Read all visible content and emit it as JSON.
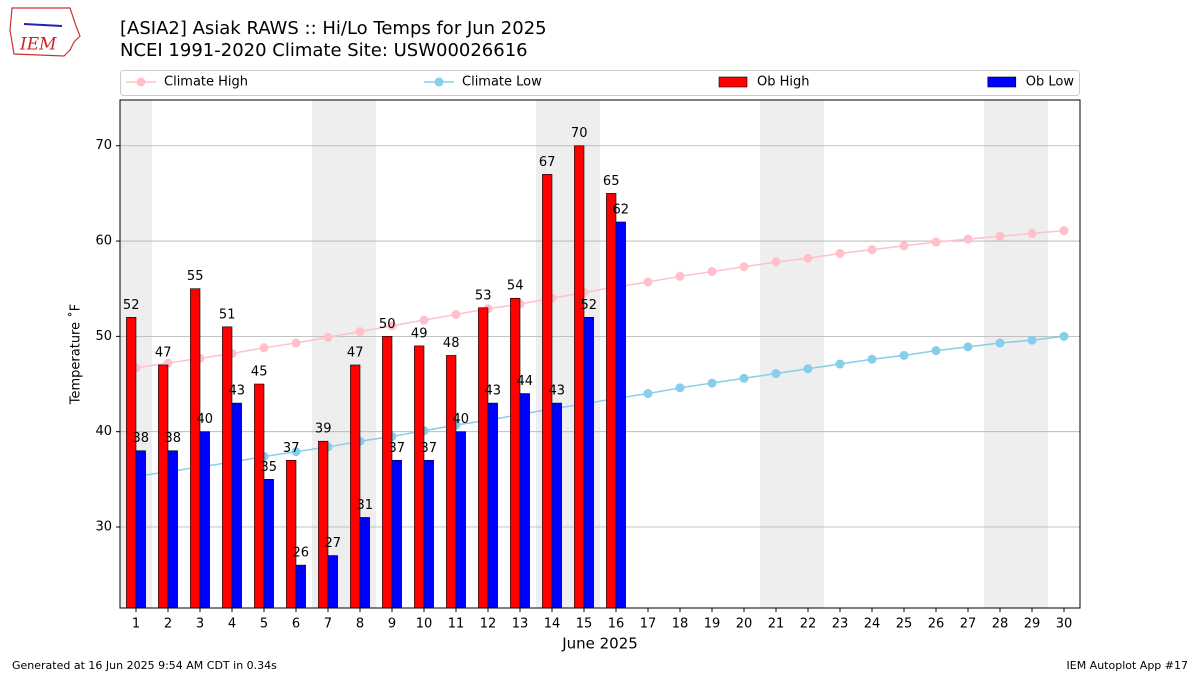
{
  "logo_text": "IEM",
  "chart_data": {
    "type": "bar",
    "title": "[ASIA2] Asiak RAWS :: Hi/Lo Temps for Jun 2025",
    "subtitle": "NCEI 1991-2020 Climate Site: USW00026616",
    "xlabel": "June 2025",
    "ylabel": "Temperature ˚F",
    "x": [
      1,
      2,
      3,
      4,
      5,
      6,
      7,
      8,
      9,
      10,
      11,
      12,
      13,
      14,
      15,
      16,
      17,
      18,
      19,
      20,
      21,
      22,
      23,
      24,
      25,
      26,
      27,
      28,
      29,
      30
    ],
    "xlim": [
      0.5,
      30.5
    ],
    "xticks": [
      1,
      2,
      3,
      4,
      5,
      6,
      7,
      8,
      9,
      10,
      11,
      12,
      13,
      14,
      15,
      16,
      17,
      18,
      19,
      20,
      21,
      22,
      23,
      24,
      25,
      26,
      27,
      28,
      29,
      30
    ],
    "ylim": [
      21.5,
      74.8
    ],
    "yticks": [
      30,
      40,
      50,
      60,
      70
    ],
    "grid": true,
    "legend": "top",
    "highlight_days": [
      1,
      7,
      8,
      14,
      15,
      21,
      22,
      28,
      29
    ],
    "series": [
      {
        "name": "Climate High",
        "type": "line",
        "color": "#ffc0cb",
        "values": [
          46.7,
          47.2,
          47.7,
          48.2,
          48.8,
          49.3,
          49.9,
          50.5,
          51.1,
          51.7,
          52.3,
          52.9,
          53.4,
          54.0,
          54.6,
          55.2,
          55.7,
          56.3,
          56.8,
          57.3,
          57.8,
          58.2,
          58.7,
          59.1,
          59.5,
          59.9,
          60.2,
          60.5,
          60.8,
          61.1
        ]
      },
      {
        "name": "Climate Low",
        "type": "line",
        "color": "#87ceeb",
        "values": [
          35.3,
          35.8,
          36.3,
          36.8,
          37.4,
          37.9,
          38.4,
          39.0,
          39.5,
          40.1,
          40.7,
          41.2,
          41.8,
          42.4,
          42.9,
          43.5,
          44.0,
          44.6,
          45.1,
          45.6,
          46.1,
          46.6,
          47.1,
          47.6,
          48.0,
          48.5,
          48.9,
          49.3,
          49.6,
          50.0
        ]
      },
      {
        "name": "Ob High",
        "type": "bar",
        "color": "#ff0000",
        "values": [
          52,
          47,
          55,
          51,
          45,
          37,
          39,
          47,
          50,
          49,
          48,
          53,
          54,
          67,
          70,
          65,
          null,
          null,
          null,
          null,
          null,
          null,
          null,
          null,
          null,
          null,
          null,
          null,
          null,
          null
        ]
      },
      {
        "name": "Ob Low",
        "type": "bar",
        "color": "#0000ff",
        "values": [
          38,
          38,
          40,
          43,
          35,
          26,
          27,
          31,
          37,
          37,
          40,
          43,
          44,
          43,
          52,
          62,
          null,
          null,
          null,
          null,
          null,
          null,
          null,
          null,
          null,
          null,
          null,
          null,
          null,
          null
        ]
      }
    ],
    "footer_left": "Generated at 16 Jun 2025 9:54 AM CDT in 0.34s",
    "footer_right": "IEM Autoplot App #17"
  }
}
